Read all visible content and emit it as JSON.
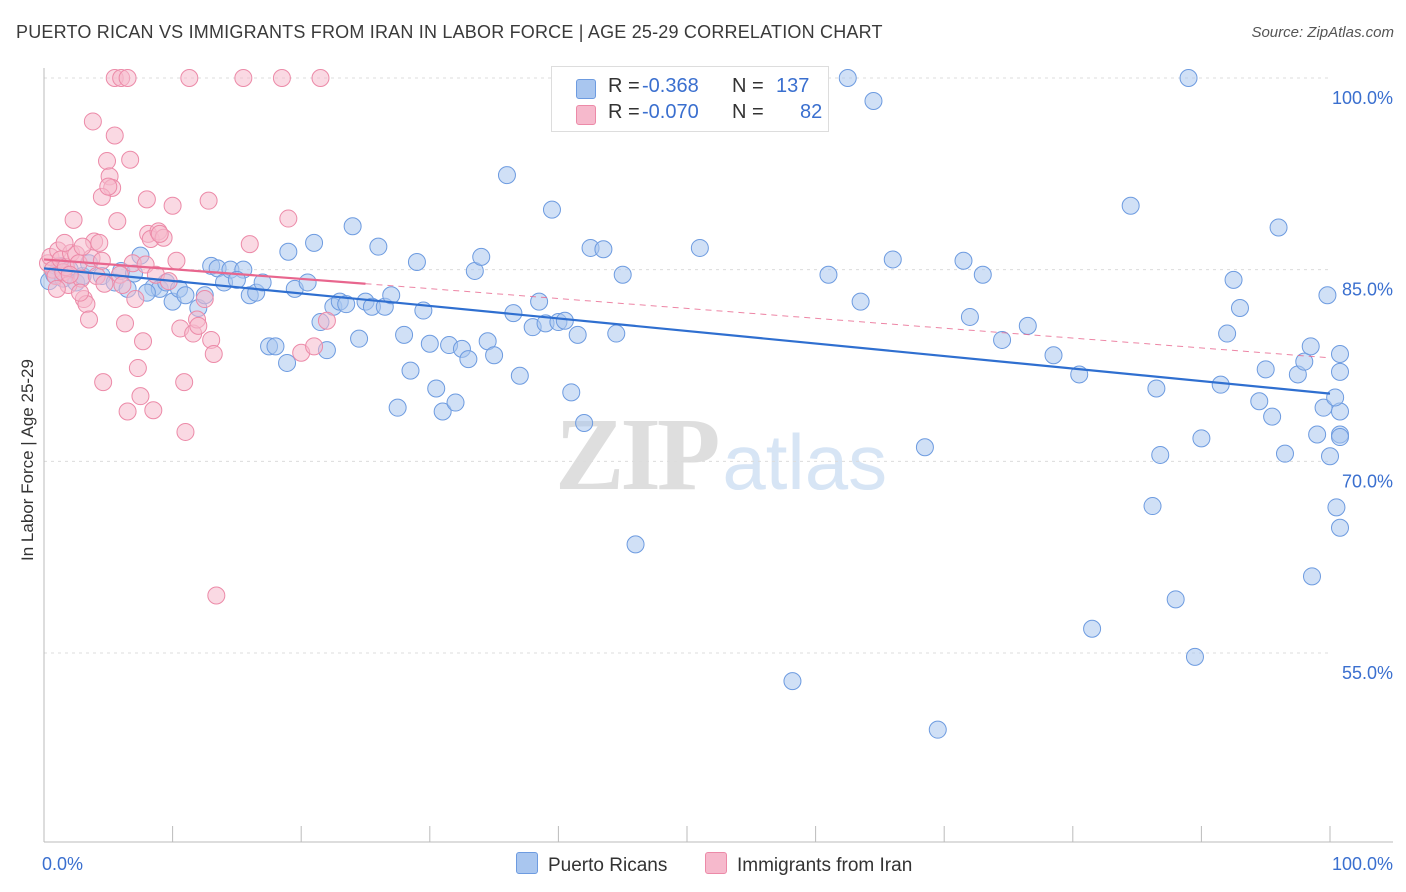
{
  "title": "PUERTO RICAN VS IMMIGRANTS FROM IRAN IN LABOR FORCE | AGE 25-29 CORRELATION CHART",
  "source": "Source: ZipAtlas.com",
  "watermark": {
    "zip": "ZIP",
    "atlas": "atlas"
  },
  "legend": {
    "rows": [
      {
        "r_label": "R =",
        "r_value": "-0.368",
        "n_label": "N =",
        "n_value": "137",
        "color": "#a9c6ef",
        "border": "#6d9be0"
      },
      {
        "r_label": "R =",
        "r_value": "-0.070",
        "n_label": "N =",
        "n_value": "82",
        "color": "#f6b9cc",
        "border": "#ec8aa8"
      }
    ]
  },
  "bottom_legend": [
    {
      "label": "Puerto Ricans",
      "color": "#a9c6ef",
      "border": "#6d9be0"
    },
    {
      "label": "Immigrants from Iran",
      "color": "#f6b9cc",
      "border": "#ec8aa8"
    }
  ],
  "chart_data": {
    "type": "scatter",
    "title": "PUERTO RICAN VS IMMIGRANTS FROM IRAN IN LABOR FORCE | AGE 25-29 CORRELATION CHART",
    "xlabel": "",
    "ylabel": "In Labor Force | Age 25-29",
    "xlim": [
      0,
      100
    ],
    "ylim": [
      40,
      102
    ],
    "x_tick_labels": [
      "0.0%",
      "100.0%"
    ],
    "y_tick_labels": [
      {
        "value": 100,
        "label": "100.0%"
      },
      {
        "value": 85,
        "label": "85.0%"
      },
      {
        "value": 70,
        "label": "70.0%"
      },
      {
        "value": 55,
        "label": "55.0%"
      }
    ],
    "grid": "horizontal dashed",
    "legend_placement": "top-center",
    "colors": {
      "blue_fill": "#a9c6ef",
      "blue_stroke": "#6d9be0",
      "blue_line": "#2f6fd0",
      "pink_fill": "#f6b9cc",
      "pink_stroke": "#ec8aa8",
      "pink_line": "#e8668e"
    },
    "series": [
      {
        "name": "Puerto Ricans",
        "color": "#a9c6ef",
        "trend": {
          "x": [
            0,
            100
          ],
          "y": [
            85.1,
            75.3
          ],
          "style": "solid"
        },
        "points": [
          [
            0.4,
            84.1
          ],
          [
            0.8,
            84.6
          ],
          [
            1.2,
            85.3
          ],
          [
            1.5,
            84.3
          ],
          [
            2.0,
            85.0
          ],
          [
            2.5,
            84.0
          ],
          [
            3.0,
            84.5
          ],
          [
            3.5,
            85.5
          ],
          [
            4.5,
            84.5
          ],
          [
            5.5,
            84.0
          ],
          [
            6.0,
            84.9
          ],
          [
            7.0,
            84.7
          ],
          [
            6.5,
            83.5
          ],
          [
            7.5,
            86.1
          ],
          [
            8.5,
            83.6
          ],
          [
            9.0,
            83.5
          ],
          [
            8.0,
            83.2
          ],
          [
            9.5,
            84.0
          ],
          [
            10.0,
            82.5
          ],
          [
            10.5,
            83.5
          ],
          [
            11.0,
            83.0
          ],
          [
            12.0,
            82.0
          ],
          [
            12.5,
            83.0
          ],
          [
            13.0,
            85.3
          ],
          [
            13.5,
            85.1
          ],
          [
            14.0,
            84.0
          ],
          [
            14.5,
            85.0
          ],
          [
            15.5,
            85.0
          ],
          [
            15.0,
            84.2
          ],
          [
            16.0,
            83.0
          ],
          [
            16.5,
            83.2
          ],
          [
            17.0,
            84.0
          ],
          [
            17.5,
            79.0
          ],
          [
            18.0,
            79.0
          ],
          [
            18.9,
            77.7
          ],
          [
            19.0,
            86.4
          ],
          [
            19.5,
            83.5
          ],
          [
            20.5,
            84.0
          ],
          [
            21.0,
            87.1
          ],
          [
            21.5,
            80.9
          ],
          [
            22.0,
            78.7
          ],
          [
            22.5,
            82.1
          ],
          [
            23.0,
            82.5
          ],
          [
            23.5,
            82.3
          ],
          [
            24.0,
            88.4
          ],
          [
            24.5,
            79.6
          ],
          [
            25.0,
            82.5
          ],
          [
            25.5,
            82.1
          ],
          [
            26.0,
            86.8
          ],
          [
            26.5,
            82.1
          ],
          [
            27.0,
            83.0
          ],
          [
            27.5,
            74.2
          ],
          [
            28.0,
            79.9
          ],
          [
            28.5,
            77.1
          ],
          [
            29.0,
            85.6
          ],
          [
            29.5,
            81.8
          ],
          [
            30.0,
            79.2
          ],
          [
            30.5,
            75.7
          ],
          [
            31.0,
            73.9
          ],
          [
            31.5,
            79.1
          ],
          [
            32.0,
            74.6
          ],
          [
            32.5,
            78.8
          ],
          [
            33.0,
            78.0
          ],
          [
            33.5,
            84.9
          ],
          [
            34.0,
            86.0
          ],
          [
            34.5,
            79.4
          ],
          [
            35.0,
            78.3
          ],
          [
            36.0,
            92.4
          ],
          [
            36.5,
            81.6
          ],
          [
            37.0,
            76.7
          ],
          [
            38.0,
            80.5
          ],
          [
            39.0,
            80.8
          ],
          [
            38.5,
            82.5
          ],
          [
            39.5,
            89.7
          ],
          [
            40.0,
            80.9
          ],
          [
            40.5,
            81.0
          ],
          [
            41.0,
            75.4
          ],
          [
            41.5,
            79.9
          ],
          [
            42.0,
            73.0
          ],
          [
            42.5,
            86.7
          ],
          [
            43.5,
            86.6
          ],
          [
            44.5,
            80.0
          ],
          [
            45.0,
            84.6
          ],
          [
            46.0,
            63.5
          ],
          [
            47.0,
            100.0
          ],
          [
            48.0,
            100.0
          ],
          [
            51.0,
            86.7
          ],
          [
            58.2,
            52.8
          ],
          [
            61.0,
            84.6
          ],
          [
            62.5,
            100.0
          ],
          [
            63.5,
            82.5
          ],
          [
            64.5,
            98.2
          ],
          [
            66.0,
            85.8
          ],
          [
            68.5,
            71.1
          ],
          [
            69.5,
            49.0
          ],
          [
            71.5,
            85.7
          ],
          [
            72.0,
            81.3
          ],
          [
            73.0,
            84.6
          ],
          [
            74.5,
            79.5
          ],
          [
            76.5,
            80.6
          ],
          [
            78.5,
            78.3
          ],
          [
            80.5,
            76.8
          ],
          [
            81.5,
            56.9
          ],
          [
            84.5,
            90.0
          ],
          [
            86.2,
            66.5
          ],
          [
            86.8,
            70.5
          ],
          [
            86.5,
            75.7
          ],
          [
            88.0,
            59.2
          ],
          [
            89.0,
            100.0
          ],
          [
            89.5,
            54.7
          ],
          [
            90.0,
            71.8
          ],
          [
            91.5,
            76.0
          ],
          [
            92.0,
            80.0
          ],
          [
            92.5,
            84.2
          ],
          [
            93.0,
            82.0
          ],
          [
            94.5,
            74.7
          ],
          [
            95.0,
            77.2
          ],
          [
            95.5,
            73.5
          ],
          [
            96.0,
            88.3
          ],
          [
            96.5,
            70.6
          ],
          [
            97.5,
            76.8
          ],
          [
            98.0,
            77.8
          ],
          [
            98.5,
            79.0
          ],
          [
            99.0,
            72.1
          ],
          [
            99.5,
            74.2
          ],
          [
            100.0,
            70.4
          ],
          [
            100.5,
            66.4
          ],
          [
            101.0,
            64.8
          ],
          [
            101.5,
            72.1
          ],
          [
            102.0,
            73.9
          ],
          [
            103.0,
            71.9
          ],
          [
            103.5,
            78.4
          ],
          [
            98.6,
            61.0
          ],
          [
            99.8,
            83.0
          ],
          [
            100.4,
            75.0
          ],
          [
            101.2,
            77.0
          ]
        ]
      },
      {
        "name": "Immigrants from Iran",
        "color": "#f6b9cc",
        "trend": {
          "x": [
            0,
            25,
            100
          ],
          "y": [
            85.8,
            83.9,
            78.1
          ],
          "style": "solid-then-dashed"
        },
        "points": [
          [
            0.3,
            85.5
          ],
          [
            0.5,
            86.0
          ],
          [
            0.7,
            85.0
          ],
          [
            0.9,
            84.5
          ],
          [
            1.1,
            86.5
          ],
          [
            1.3,
            85.8
          ],
          [
            1.5,
            84.8
          ],
          [
            1.7,
            85.2
          ],
          [
            1.9,
            83.8
          ],
          [
            2.1,
            86.3
          ],
          [
            2.3,
            88.9
          ],
          [
            2.5,
            86.2
          ],
          [
            2.7,
            85.5
          ],
          [
            2.9,
            84.3
          ],
          [
            3.1,
            82.7
          ],
          [
            3.3,
            82.3
          ],
          [
            3.5,
            81.1
          ],
          [
            3.7,
            85.9
          ],
          [
            3.9,
            87.2
          ],
          [
            4.1,
            84.5
          ],
          [
            4.3,
            87.1
          ],
          [
            4.5,
            85.7
          ],
          [
            4.7,
            83.9
          ],
          [
            4.9,
            93.5
          ],
          [
            5.1,
            92.3
          ],
          [
            5.3,
            91.4
          ],
          [
            5.5,
            95.5
          ],
          [
            5.7,
            88.8
          ],
          [
            5.9,
            84.6
          ],
          [
            6.1,
            83.8
          ],
          [
            6.3,
            80.8
          ],
          [
            6.5,
            73.9
          ],
          [
            6.7,
            93.6
          ],
          [
            6.9,
            85.5
          ],
          [
            7.1,
            82.7
          ],
          [
            7.3,
            77.3
          ],
          [
            7.5,
            75.1
          ],
          [
            7.7,
            79.4
          ],
          [
            7.9,
            85.4
          ],
          [
            8.1,
            87.8
          ],
          [
            8.3,
            87.4
          ],
          [
            8.5,
            74.0
          ],
          [
            8.7,
            84.6
          ],
          [
            8.9,
            88.0
          ],
          [
            9.3,
            87.5
          ],
          [
            9.7,
            84.1
          ],
          [
            10.0,
            90.0
          ],
          [
            10.3,
            85.7
          ],
          [
            10.6,
            80.4
          ],
          [
            10.9,
            76.2
          ],
          [
            11.0,
            72.3
          ],
          [
            11.3,
            100.0
          ],
          [
            11.6,
            80.0
          ],
          [
            11.9,
            81.1
          ],
          [
            12.0,
            80.6
          ],
          [
            12.5,
            82.7
          ],
          [
            12.8,
            90.4
          ],
          [
            13.0,
            79.5
          ],
          [
            13.2,
            78.4
          ],
          [
            13.4,
            59.5
          ],
          [
            3.8,
            96.6
          ],
          [
            4.5,
            90.7
          ],
          [
            4.6,
            76.2
          ],
          [
            5.0,
            91.5
          ],
          [
            5.5,
            100.0
          ],
          [
            6.0,
            100.0
          ],
          [
            6.5,
            100.0
          ],
          [
            8.0,
            90.5
          ],
          [
            9.0,
            87.8
          ],
          [
            15.5,
            100.0
          ],
          [
            16.0,
            87.0
          ],
          [
            18.5,
            100.0
          ],
          [
            19.0,
            89.0
          ],
          [
            20.0,
            78.5
          ],
          [
            21.0,
            79.0
          ],
          [
            21.5,
            100.0
          ],
          [
            22.0,
            81.0
          ],
          [
            1.0,
            83.5
          ],
          [
            2.0,
            84.6
          ],
          [
            3.0,
            86.8
          ],
          [
            1.6,
            87.1
          ],
          [
            2.8,
            83.2
          ]
        ]
      }
    ]
  }
}
